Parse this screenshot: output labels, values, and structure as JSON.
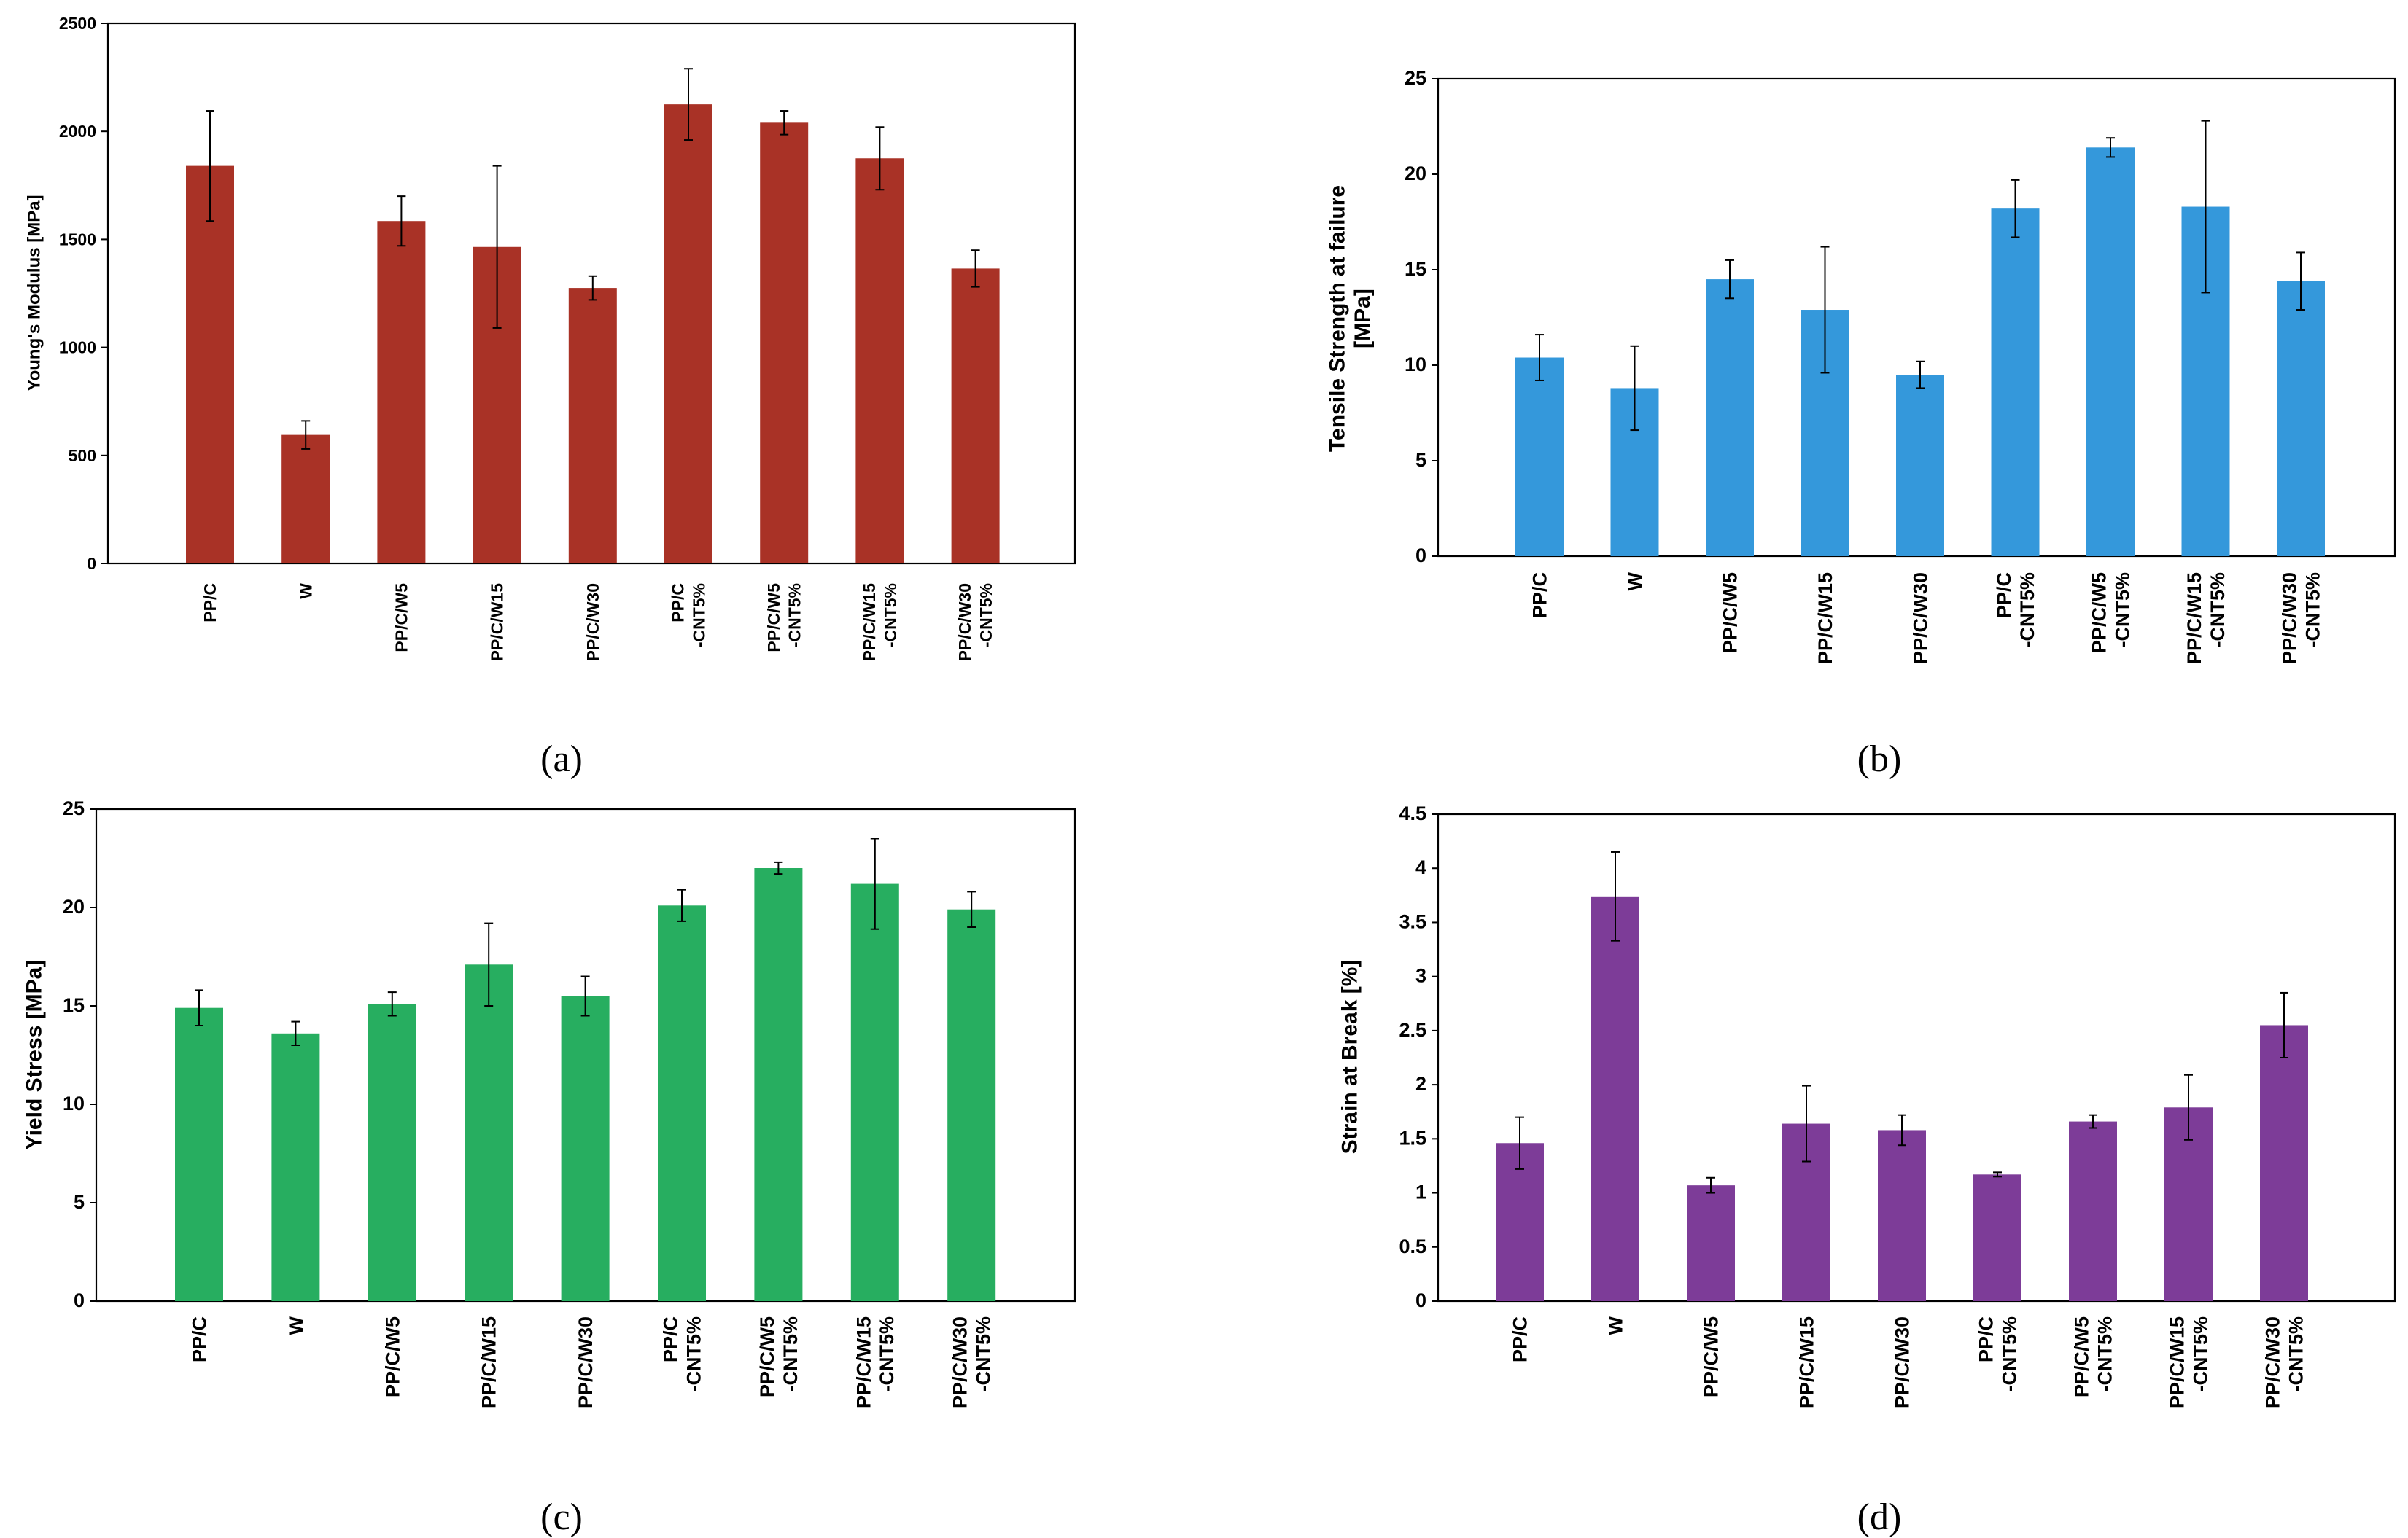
{
  "chart_data": [
    {
      "type": "bar",
      "panel_label": "(a)",
      "title": "",
      "xlabel": "",
      "ylabel": "Young's Modulus [MPa]",
      "ylim": [
        0,
        2500
      ],
      "yticks": [
        0,
        500,
        1000,
        1500,
        2000,
        2500
      ],
      "color": "#A93226",
      "categories": [
        [
          "PP/C"
        ],
        [
          "W"
        ],
        [
          "PP/C/W5"
        ],
        [
          "PP/C/W15"
        ],
        [
          "PP/C/W30"
        ],
        [
          "PP/C",
          "-CNT5%"
        ],
        [
          "PP/C/W5",
          "-CNT5%"
        ],
        [
          "PP/C/W15",
          "-CNT5%"
        ],
        [
          "PP/C/W30",
          "-CNT5%"
        ]
      ],
      "values": [
        1840,
        595,
        1585,
        1465,
        1275,
        2125,
        2040,
        1875,
        1365
      ],
      "errors": [
        255,
        65,
        115,
        375,
        55,
        165,
        55,
        145,
        85
      ]
    },
    {
      "type": "bar",
      "panel_label": "(b)",
      "title": "",
      "xlabel": "",
      "ylabel": [
        "Tensile Strength at failure",
        "[MPa]"
      ],
      "ylim": [
        0,
        25
      ],
      "yticks": [
        0,
        5,
        10,
        15,
        20,
        25
      ],
      "color": "#3498DB",
      "categories": [
        [
          "PP/C"
        ],
        [
          "W"
        ],
        [
          "PP/C/W5"
        ],
        [
          "PP/C/W15"
        ],
        [
          "PP/C/W30"
        ],
        [
          "PP/C",
          "-CNT5%"
        ],
        [
          "PP/C/W5",
          "-CNT5%"
        ],
        [
          "PP/C/W15",
          "-CNT5%"
        ],
        [
          "PP/C/W30",
          "-CNT5%"
        ]
      ],
      "values": [
        10.4,
        8.8,
        14.5,
        12.9,
        9.5,
        18.2,
        21.4,
        18.3,
        14.4
      ],
      "errors": [
        1.2,
        2.2,
        1.0,
        3.3,
        0.7,
        1.5,
        0.5,
        4.5,
        1.5
      ]
    },
    {
      "type": "bar",
      "panel_label": "(c)",
      "title": "",
      "xlabel": "",
      "ylabel": "Yield Stress [MPa]",
      "ylim": [
        0,
        25
      ],
      "yticks": [
        0,
        5,
        10,
        15,
        20,
        25
      ],
      "color": "#27AE60",
      "categories": [
        [
          "PP/C"
        ],
        [
          "W"
        ],
        [
          "PP/C/W5"
        ],
        [
          "PP/C/W15"
        ],
        [
          "PP/C/W30"
        ],
        [
          "PP/C",
          "-CNT5%"
        ],
        [
          "PP/C/W5",
          "-CNT5%"
        ],
        [
          "PP/C/W15",
          "-CNT5%"
        ],
        [
          "PP/C/W30",
          "-CNT5%"
        ]
      ],
      "values": [
        14.9,
        13.6,
        15.1,
        17.1,
        15.5,
        20.1,
        22.0,
        21.2,
        19.9
      ],
      "errors": [
        0.9,
        0.6,
        0.6,
        2.1,
        1.0,
        0.8,
        0.3,
        2.3,
        0.9
      ]
    },
    {
      "type": "bar",
      "panel_label": "(d)",
      "title": "",
      "xlabel": "",
      "ylabel": "Strain at Break [%]",
      "ylim": [
        0,
        4.5
      ],
      "yticks": [
        0,
        0.5,
        1,
        1.5,
        2,
        2.5,
        3,
        3.5,
        4,
        4.5
      ],
      "color": "#7D3C98",
      "categories": [
        [
          "PP/C"
        ],
        [
          "W"
        ],
        [
          "PP/C/W5"
        ],
        [
          "PP/C/W15"
        ],
        [
          "PP/C/W30"
        ],
        [
          "PP/C",
          "-CNT5%"
        ],
        [
          "PP/C/W5",
          "-CNT5%"
        ],
        [
          "PP/C/W15",
          "-CNT5%"
        ],
        [
          "PP/C/W30",
          "-CNT5%"
        ]
      ],
      "values": [
        1.46,
        3.74,
        1.07,
        1.64,
        1.58,
        1.17,
        1.66,
        1.79,
        2.55
      ],
      "errors": [
        0.24,
        0.41,
        0.07,
        0.35,
        0.14,
        0.02,
        0.06,
        0.3,
        0.3
      ]
    }
  ]
}
